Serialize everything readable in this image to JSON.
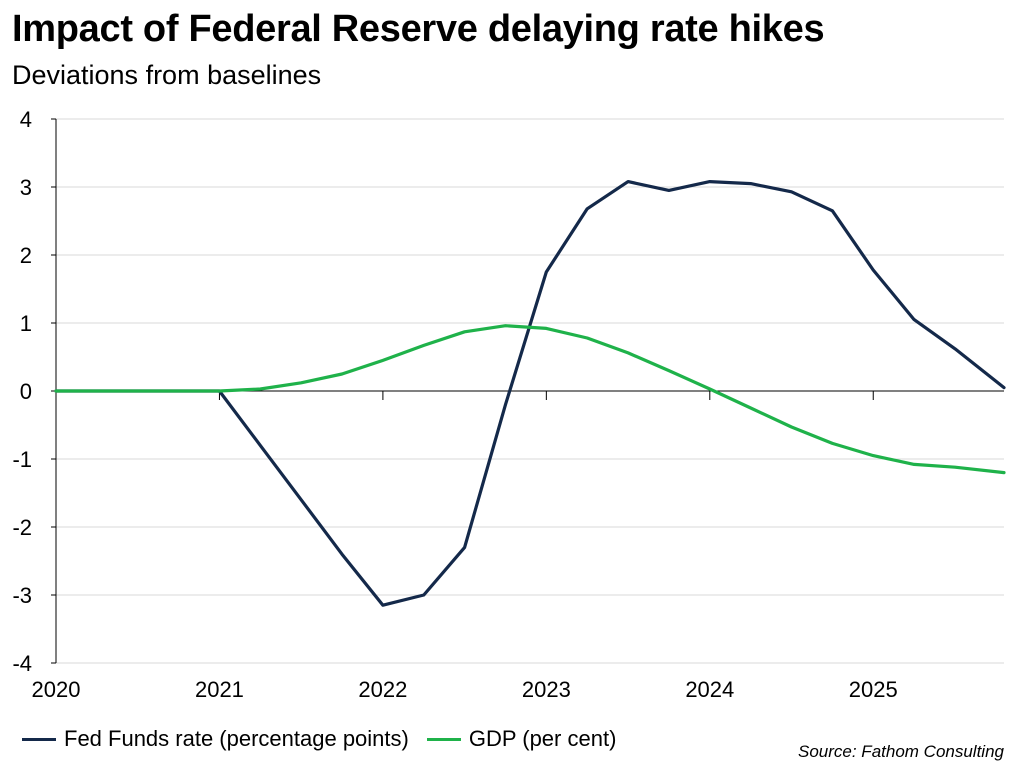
{
  "chart_data": {
    "type": "line",
    "title": "Impact of Federal Reserve delaying rate hikes",
    "subtitle": "Deviations from baselines",
    "source": "Source: Fathom Consulting",
    "xlabel": "",
    "ylabel": "",
    "x_range": [
      2020,
      2025.8
    ],
    "ylim": [
      -4,
      4
    ],
    "y_ticks": [
      4,
      3,
      2,
      1,
      0,
      -1,
      -2,
      -3,
      -4
    ],
    "x_ticks": [
      2020,
      2021,
      2022,
      2023,
      2024,
      2025
    ],
    "x_tick_labels": [
      "2020",
      "2021",
      "2022",
      "2023",
      "2024",
      "2025"
    ],
    "grid": true,
    "legend_position": "bottom-left",
    "series": [
      {
        "name": "Fed Funds rate (percentage points)",
        "color": "#14294a",
        "x": [
          2020,
          2020.25,
          2020.5,
          2020.75,
          2021,
          2021.25,
          2021.5,
          2021.75,
          2022,
          2022.25,
          2022.5,
          2022.75,
          2023,
          2023.25,
          2023.5,
          2023.75,
          2024,
          2024.25,
          2024.5,
          2024.75,
          2025,
          2025.25,
          2025.5,
          2025.8
        ],
        "values": [
          0,
          0,
          0,
          0,
          0,
          -0.8,
          -1.6,
          -2.4,
          -3.15,
          -3.0,
          -2.3,
          -0.2,
          1.75,
          2.68,
          3.08,
          2.95,
          3.08,
          3.05,
          2.93,
          2.65,
          1.78,
          1.05,
          0.62,
          0.05
        ]
      },
      {
        "name": "GDP (per cent)",
        "color": "#1fb24a",
        "x": [
          2020,
          2020.25,
          2020.5,
          2020.75,
          2021,
          2021.25,
          2021.5,
          2021.75,
          2022,
          2022.25,
          2022.5,
          2022.75,
          2023,
          2023.25,
          2023.5,
          2023.75,
          2024,
          2024.25,
          2024.5,
          2024.75,
          2025,
          2025.25,
          2025.5,
          2025.8
        ],
        "values": [
          0,
          0,
          0,
          0,
          0,
          0.03,
          0.12,
          0.25,
          0.45,
          0.67,
          0.87,
          0.96,
          0.92,
          0.78,
          0.56,
          0.3,
          0.03,
          -0.25,
          -0.53,
          -0.77,
          -0.95,
          -1.08,
          -1.12,
          -1.2
        ]
      }
    ]
  }
}
